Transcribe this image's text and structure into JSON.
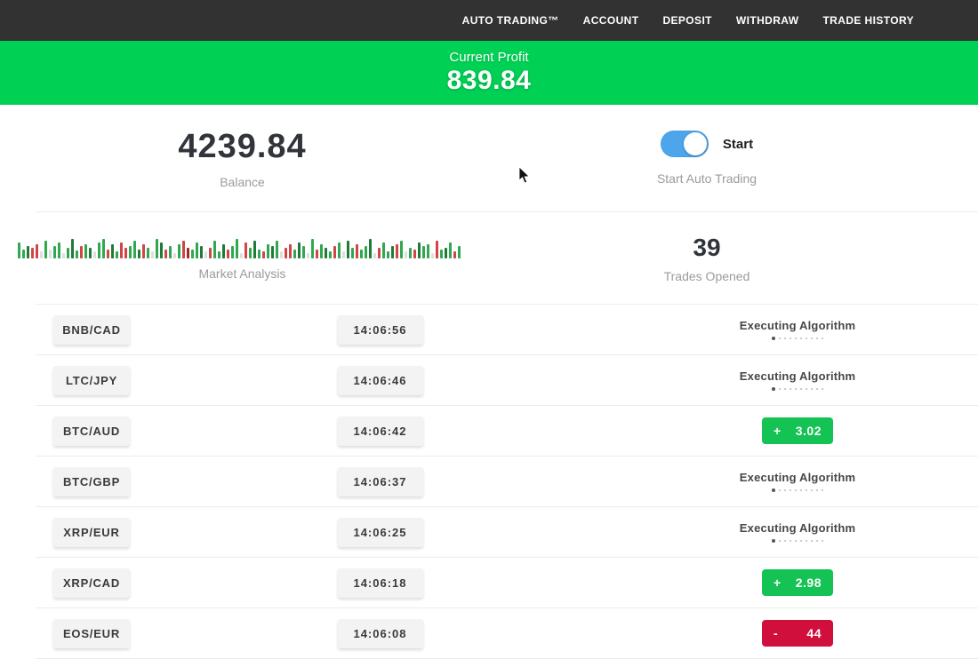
{
  "nav": {
    "items": [
      {
        "label": "AUTO TRADING™"
      },
      {
        "label": "ACCOUNT"
      },
      {
        "label": "DEPOSIT"
      },
      {
        "label": "WITHDRAW"
      },
      {
        "label": "TRADE HISTORY"
      }
    ]
  },
  "banner": {
    "title": "Current Profit",
    "value": "839.84"
  },
  "stats": {
    "balance": {
      "value": "4239.84",
      "label": "Balance"
    },
    "auto_trading": {
      "toggle_label": "Start",
      "label": "Start Auto Trading",
      "toggle_on": true
    },
    "market": {
      "label": "Market Analysis",
      "bars": "G18,G10,D14,R12,R16,p8,G20,p10,G14,G18,p6,G12,D22,G9,R14,G16,D12,p8,G18,G22,R10,D16,G8,R18,R12,G14,G20,D10,R16,G12,p8,G22,D18,R10,G14,p6,G16,R20,C12,G10,G18,D14,p8,R12,G20,G8,D16,R10,G14,G22,p6,R18,G12,D20,G10,R8,G16,D14,G20,p8,R12,R16,G10,D18,G14,p6,G22,R10,G16,D12,G8,R14,G18,p8,D20,G12,R16,G10,G14,D22,p6,R12,G18,G8,D14,R16,G20,p8,G12,R10,D18,G14,G16,p6,R20,G10,D12,G18,R8,G14"
    },
    "trades": {
      "value": "39",
      "label": "Trades Opened"
    }
  },
  "table": {
    "executing_label": "Executing Algorithm",
    "dots_total": 10,
    "rows": [
      {
        "pair": "BNB/CAD",
        "time": "14:06:56",
        "status": "executing"
      },
      {
        "pair": "LTC/JPY",
        "time": "14:06:46",
        "status": "executing"
      },
      {
        "pair": "BTC/AUD",
        "time": "14:06:42",
        "status": "profit",
        "sign": "+",
        "amount": "3.02"
      },
      {
        "pair": "BTC/GBP",
        "time": "14:06:37",
        "status": "executing"
      },
      {
        "pair": "XRP/EUR",
        "time": "14:06:25",
        "status": "executing"
      },
      {
        "pair": "XRP/CAD",
        "time": "14:06:18",
        "status": "profit",
        "sign": "+",
        "amount": "2.98"
      },
      {
        "pair": "EOS/EUR",
        "time": "14:06:08",
        "status": "loss",
        "sign": "-",
        "amount": "44"
      }
    ]
  },
  "colors": {
    "nav_bg": "#323232",
    "banner_green": "#00d155",
    "profit_green": "#14c353",
    "loss_red": "#d10f3d",
    "toggle_blue": "#4da6ec",
    "bar_palette": {
      "G": "#2fa84f",
      "D": "#207a38",
      "R": "#d04545",
      "C": "#a82828",
      "p": "#dedede"
    }
  }
}
